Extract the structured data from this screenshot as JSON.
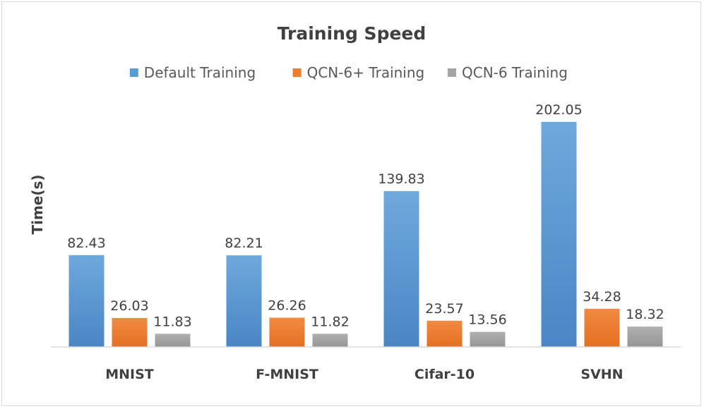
{
  "chart_data": {
    "type": "bar",
    "title": "Training Speed",
    "xlabel": "",
    "ylabel": "Time(s)",
    "categories": [
      "MNIST",
      "F-MNIST",
      "Cifar-10",
      "SVHN"
    ],
    "series": [
      {
        "name": "Default Training",
        "values": [
          82.43,
          82.21,
          139.83,
          202.05
        ],
        "color": "#5b9bd5"
      },
      {
        "name": "QCN-6+ Training",
        "values": [
          26.03,
          26.26,
          23.57,
          34.28
        ],
        "color": "#ed7d31"
      },
      {
        "name": "QCN-6 Training",
        "values": [
          11.83,
          11.82,
          13.56,
          18.32
        ],
        "color": "#a5a5a5"
      }
    ],
    "ylim": [
      0,
      220
    ],
    "grid": false,
    "legend": "top"
  }
}
